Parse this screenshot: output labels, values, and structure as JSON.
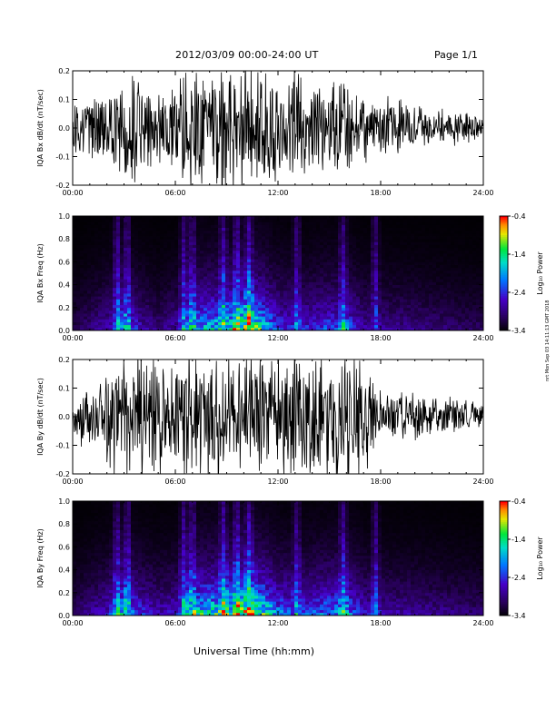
{
  "header": {
    "title": "2012/03/09   00:00-24:00 UT",
    "page": "Page 1/1"
  },
  "footer": {
    "xaxis_title": "Universal Time (hh:mm)",
    "stamp": "nrt Mon Sep 03 14:11:13 GMT 2018"
  },
  "colors": {
    "trace": "#000000",
    "spectro_low": "#000000",
    "spectro_high": "#ff0000"
  },
  "chart_data": [
    {
      "type": "line",
      "name": "bx-dbdt",
      "ylabel": "IQA Bx dB/dt (nT/sec)",
      "ylim": [
        -0.2,
        0.2
      ],
      "yticks": [
        "-0.2",
        "-0.1",
        "0.0",
        "0.1",
        "0.2"
      ],
      "xticks": [
        "00:00",
        "06:00",
        "12:00",
        "18:00",
        "24:00"
      ],
      "x": [
        0,
        2,
        3,
        4,
        6,
        7,
        8,
        9,
        10,
        11,
        12,
        13,
        14,
        15,
        16,
        17,
        18,
        19,
        20,
        21,
        22,
        23,
        24
      ],
      "amplitude": [
        0.07,
        0.12,
        0.2,
        0.14,
        0.12,
        0.2,
        0.2,
        0.2,
        0.2,
        0.2,
        0.16,
        0.2,
        0.16,
        0.15,
        0.14,
        0.1,
        0.09,
        0.09,
        0.07,
        0.06,
        0.05,
        0.05,
        0.03
      ],
      "grid": false
    },
    {
      "type": "heatmap",
      "name": "bx-spectrogram",
      "ylabel": "IQA Bx Freq (Hz)",
      "ylim": [
        0.0,
        1.0
      ],
      "yticks": [
        "0.0",
        "0.2",
        "0.4",
        "0.6",
        "0.8",
        "1.0"
      ],
      "xticks": [
        "00:00",
        "06:00",
        "12:00",
        "18:00",
        "24:00"
      ],
      "colorbar": {
        "label": "Log₁₀ Power",
        "ticks": [
          "-0.4",
          "-1.4",
          "-2.4",
          "-3.4"
        ],
        "range": [
          -3.4,
          -0.4
        ]
      },
      "x": [
        0,
        1,
        2,
        3,
        4,
        5,
        6,
        6.5,
        7,
        8,
        9,
        9.5,
        10,
        10.5,
        11,
        12,
        13,
        14,
        15,
        16,
        17,
        18,
        19,
        20,
        21,
        22,
        23,
        24
      ],
      "intensity": [
        0.12,
        0.2,
        0.3,
        0.55,
        0.3,
        0.2,
        0.28,
        0.45,
        0.6,
        0.65,
        0.72,
        0.85,
        0.9,
        0.95,
        0.75,
        0.45,
        0.35,
        0.4,
        0.45,
        0.5,
        0.28,
        0.25,
        0.24,
        0.22,
        0.2,
        0.18,
        0.16,
        0.15
      ],
      "spikes": [
        2.6,
        3.2,
        6.5,
        7.0,
        8.8,
        9.6,
        10.3,
        13.1,
        15.8,
        17.7
      ]
    },
    {
      "type": "line",
      "name": "by-dbdt",
      "ylabel": "IQA By dB/dt (nT/sec)",
      "ylim": [
        -0.2,
        0.2
      ],
      "yticks": [
        "-0.2",
        "-0.1",
        "0.0",
        "0.1",
        "0.2"
      ],
      "xticks": [
        "00:00",
        "06:00",
        "12:00",
        "18:00",
        "24:00"
      ],
      "x": [
        0,
        1,
        2,
        3,
        4,
        6,
        7,
        8,
        9,
        10,
        11,
        12,
        13,
        14,
        15,
        16,
        17,
        18,
        19,
        20,
        21,
        22,
        23,
        24
      ],
      "amplitude": [
        0.07,
        0.1,
        0.15,
        0.2,
        0.2,
        0.2,
        0.2,
        0.2,
        0.2,
        0.2,
        0.2,
        0.2,
        0.2,
        0.2,
        0.2,
        0.2,
        0.2,
        0.08,
        0.07,
        0.07,
        0.06,
        0.06,
        0.05,
        0.04
      ],
      "grid": false
    },
    {
      "type": "heatmap",
      "name": "by-spectrogram",
      "ylabel": "IQA By Freq (Hz)",
      "ylim": [
        0.0,
        1.0
      ],
      "yticks": [
        "0.0",
        "0.2",
        "0.4",
        "0.6",
        "0.8",
        "1.0"
      ],
      "xticks": [
        "00:00",
        "06:00",
        "12:00",
        "18:00",
        "24:00"
      ],
      "colorbar": {
        "label": "Log₁₀ Power",
        "ticks": [
          "-0.4",
          "-1.4",
          "-2.4",
          "-3.4"
        ],
        "range": [
          -3.4,
          -0.4
        ]
      },
      "x": [
        0,
        1,
        2,
        3,
        4,
        5,
        6,
        6.5,
        7,
        8,
        9,
        9.5,
        10,
        10.5,
        11,
        12,
        13,
        14,
        15,
        16,
        17,
        18,
        19,
        20,
        21,
        22,
        23,
        24
      ],
      "intensity": [
        0.15,
        0.25,
        0.35,
        0.65,
        0.4,
        0.3,
        0.35,
        0.55,
        0.7,
        0.75,
        0.8,
        0.9,
        0.95,
        1.0,
        0.85,
        0.55,
        0.45,
        0.5,
        0.55,
        0.6,
        0.35,
        0.3,
        0.28,
        0.26,
        0.24,
        0.22,
        0.2,
        0.18
      ],
      "spikes": [
        2.6,
        3.2,
        6.5,
        7.0,
        8.8,
        9.6,
        10.3,
        13.1,
        15.8,
        17.7
      ]
    }
  ]
}
